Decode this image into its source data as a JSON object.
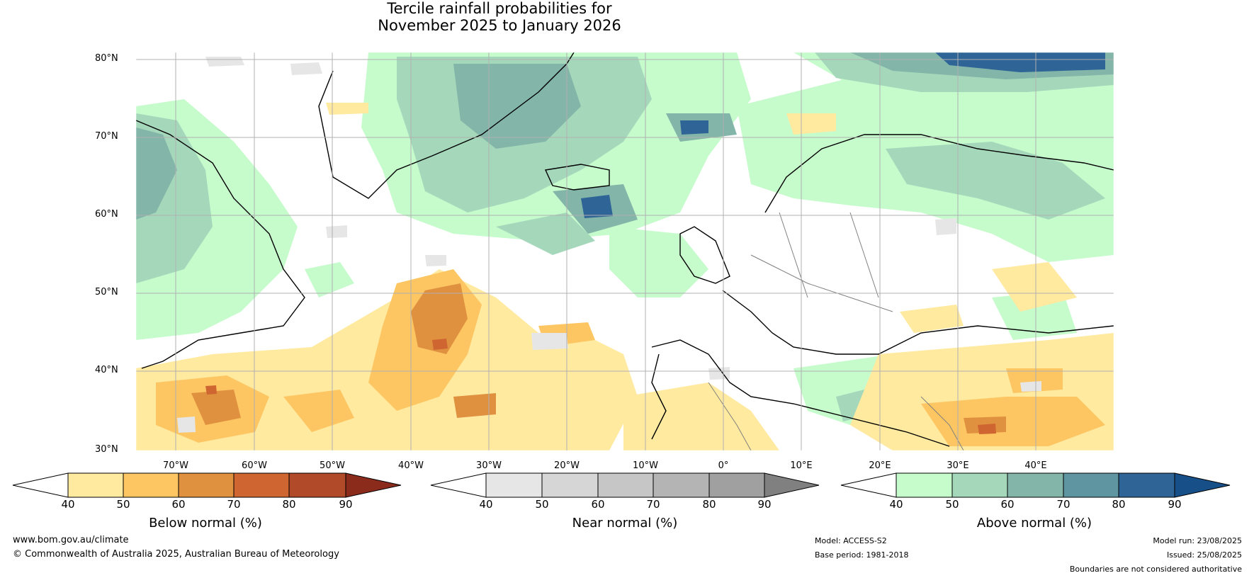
{
  "title": {
    "line1": "Tercile rainfall probabilities for",
    "line2": "November 2025 to January 2026"
  },
  "map": {
    "lat_labels": [
      "80°N",
      "70°N",
      "60°N",
      "50°N",
      "40°N",
      "30°N"
    ],
    "lon_labels": [
      "70°W",
      "60°W",
      "50°W",
      "40°W",
      "30°W",
      "20°W",
      "10°W",
      "0°",
      "10°E",
      "20°E",
      "30°E",
      "40°E"
    ],
    "colors": {
      "land_outline": "#000000",
      "borders": "#808080",
      "gridlines": "#b0b0b0"
    }
  },
  "colorbars": [
    {
      "name": "below",
      "title": "Below normal (%)",
      "ticks": [
        "40",
        "50",
        "60",
        "70",
        "80",
        "90"
      ],
      "colors": [
        "#ffffff",
        "#ffeaa0",
        "#fdc663",
        "#e0913f",
        "#cf6631",
        "#b04a29",
        "#8a2b1c"
      ]
    },
    {
      "name": "near",
      "title": "Near normal (%)",
      "ticks": [
        "40",
        "50",
        "60",
        "70",
        "80",
        "90"
      ],
      "colors": [
        "#ffffff",
        "#e6e6e6",
        "#d6d6d6",
        "#c6c6c6",
        "#b4b4b4",
        "#a0a0a0",
        "#808080"
      ]
    },
    {
      "name": "above",
      "title": "Above normal (%)",
      "ticks": [
        "40",
        "50",
        "60",
        "70",
        "80",
        "90"
      ],
      "colors": [
        "#ffffff",
        "#c6fbcc",
        "#a5d8bb",
        "#83b5a8",
        "#5e95a0",
        "#2f6596",
        "#174f88"
      ]
    }
  ],
  "footer": {
    "website": "www.bom.gov.au/climate",
    "copyright": "© Commonwealth of Australia 2025, Australian Bureau of Meteorology",
    "model": "Model: ACCESS-S2",
    "base_period": "Base period: 1981-2018",
    "model_run": "Model run: 23/08/2025",
    "issued": "Issued: 25/08/2025",
    "disclaimer": "Boundaries are not considered authoritative"
  }
}
